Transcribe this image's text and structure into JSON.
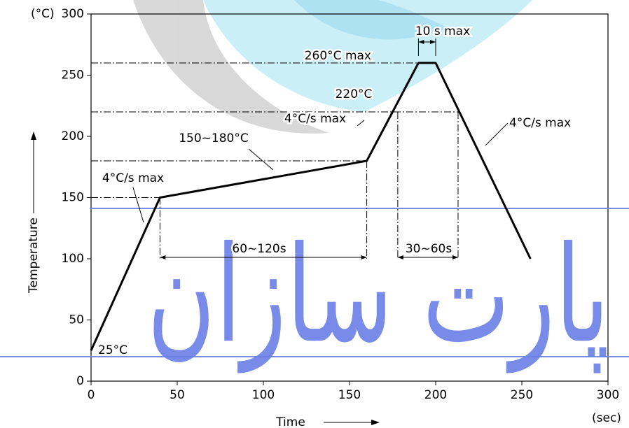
{
  "chart_data": {
    "type": "line",
    "xlabel": "Time",
    "ylabel": "Temperature",
    "yunit": "(°C)",
    "xunit": "(sec)",
    "x": [
      0,
      40,
      160,
      190,
      200,
      255
    ],
    "series": [
      {
        "color": "#000000",
        "values": [
          25,
          150,
          180,
          260,
          260,
          100
        ]
      }
    ],
    "xlim": [
      0,
      300
    ],
    "ylim": [
      0,
      300
    ],
    "xticks": [
      0,
      50,
      100,
      150,
      200,
      250,
      300
    ],
    "yticks": [
      0,
      50,
      100,
      150,
      200,
      250,
      300
    ],
    "guides_y": [
      {
        "y": 260,
        "x_end": 190
      },
      {
        "y": 220,
        "x_end": 213
      },
      {
        "y": 180,
        "x_end": 160
      },
      {
        "y": 150,
        "x_end": 40
      }
    ],
    "guides_x": [
      {
        "x": 40,
        "y_top": 150,
        "y_bottom": 100
      },
      {
        "x": 160,
        "y_top": 180,
        "y_bottom": 100
      },
      {
        "x": 178,
        "y_top": 220,
        "y_bottom": 100
      },
      {
        "x": 213,
        "y_top": 220,
        "y_bottom": 100
      }
    ],
    "annotations": [
      "260°C max",
      "10 s max",
      "220°C",
      "4°C/s max",
      "150~180°C",
      "4°C/s max",
      "4°C/s max",
      "60~120s",
      "30~60s",
      "25°C"
    ],
    "watermark": "پارت سازان"
  }
}
